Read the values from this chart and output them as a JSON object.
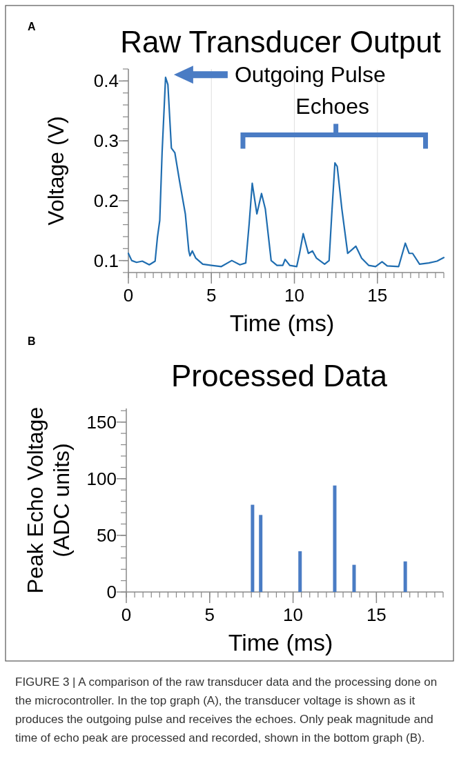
{
  "chart_data": [
    {
      "type": "line",
      "title": "Raw Transducer Output",
      "xlabel": "Time (ms)",
      "ylabel": "Voltage (V)",
      "annotations": [
        "A",
        "Outgoing Pulse",
        "Echoes"
      ],
      "x": [
        0,
        0.2,
        0.49,
        0.84,
        1.26,
        1.61,
        1.75,
        1.89,
        2.03,
        2.24,
        2.38,
        2.59,
        2.8,
        3.08,
        3.43,
        3.64,
        3.71,
        3.85,
        4.06,
        4.48,
        5.0,
        5.6,
        6.23,
        6.72,
        7.07,
        7.28,
        7.46,
        7.74,
        8.02,
        8.25,
        8.6,
        8.95,
        9.3,
        9.44,
        9.72,
        10.14,
        10.31,
        10.53,
        10.84,
        11.09,
        11.33,
        11.82,
        12.09,
        12.26,
        12.44,
        12.58,
        12.86,
        13.21,
        13.7,
        14.05,
        14.47,
        14.89,
        15.28,
        15.59,
        16.28,
        16.68,
        16.91,
        17.12,
        17.54,
        18.1,
        18.59,
        19.0
      ],
      "series": [
        {
          "color": "#1f6db0",
          "values": [
            0.112,
            0.1,
            0.097,
            0.099,
            0.093,
            0.099,
            0.139,
            0.167,
            0.28,
            0.406,
            0.394,
            0.288,
            0.28,
            0.233,
            0.178,
            0.116,
            0.108,
            0.116,
            0.104,
            0.094,
            0.092,
            0.09,
            0.1,
            0.093,
            0.096,
            0.163,
            0.229,
            0.178,
            0.212,
            0.186,
            0.1,
            0.092,
            0.092,
            0.102,
            0.092,
            0.09,
            0.112,
            0.145,
            0.112,
            0.116,
            0.104,
            0.094,
            0.1,
            0.182,
            0.263,
            0.257,
            0.186,
            0.112,
            0.124,
            0.104,
            0.092,
            0.09,
            0.098,
            0.091,
            0.09,
            0.129,
            0.112,
            0.112,
            0.094,
            0.096,
            0.099,
            0.105
          ]
        }
      ],
      "xlim": [
        0,
        19
      ],
      "xticks": [
        0,
        5,
        10,
        15
      ],
      "ylim": [
        0.08,
        0.42
      ],
      "yticks": [
        0.1,
        0.2,
        0.3,
        0.4
      ],
      "grid": "x"
    },
    {
      "type": "bar",
      "title": "Processed Data",
      "xlabel": "Time (ms)",
      "ylabel": "Peak Echo Voltage (ADC units)",
      "annotations": [
        "B",
        "FIGURE 3 | A comparison of the raw transducer data and the processing done on the microcontroller. In the top graph (A), the transducer voltage is shown as it produces the outgoing pulse and receives the echoes. Only peak magnitude and time of echo peak are processed and recorded, shown in the bottom graph (B)."
      ],
      "x": [
        7.57,
        8.06,
        10.42,
        12.5,
        13.66,
        16.73
      ],
      "values": [
        77,
        68,
        36,
        94,
        24,
        27
      ],
      "color": "#4a7cc4",
      "xlim": [
        0,
        19
      ],
      "xticks": [
        0,
        5,
        10,
        15
      ],
      "ylim": [
        0,
        162
      ],
      "yticks": [
        0,
        50,
        100,
        150
      ]
    }
  ]
}
